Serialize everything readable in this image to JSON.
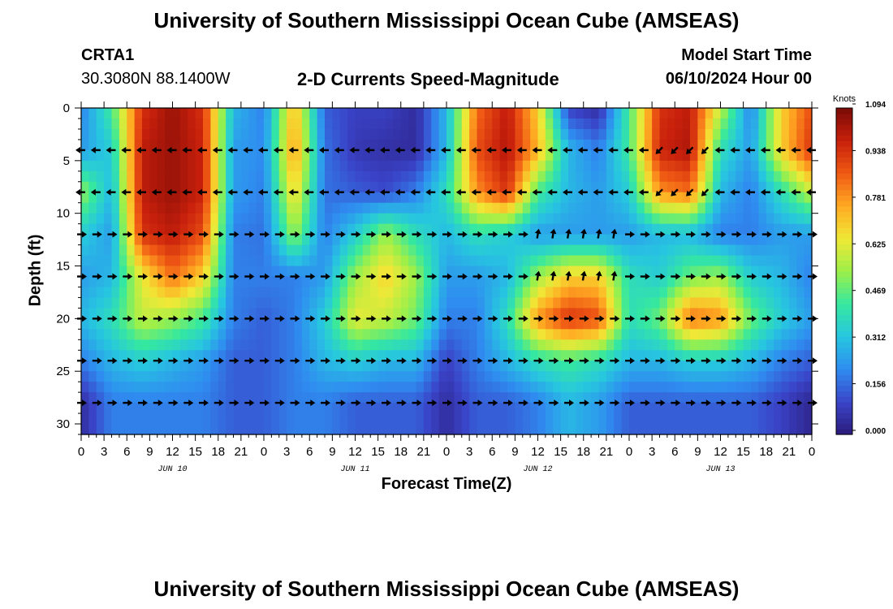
{
  "header": {
    "title_top": "University of Southern Mississippi Ocean Cube (AMSEAS)",
    "station_id": "CRTA1",
    "station_coords": "30.3080N  88.1400W",
    "plot_title": "2-D Currents Speed-Magnitude",
    "model_start_label": "Model Start Time",
    "model_start_value": "06/10/2024 Hour 00",
    "title_bottom": "University of Southern Mississippi Ocean Cube (AMSEAS)"
  },
  "chart_data": {
    "type": "heatmap",
    "title": "2-D Currents Speed-Magnitude",
    "xlabel": "Forecast Time(Z)",
    "ylabel": "Depth (ft)",
    "x_range_hours": [
      0,
      96
    ],
    "y_range_ft": [
      0,
      31
    ],
    "x_tick_labels": [
      "0",
      "3",
      "6",
      "9",
      "12",
      "15",
      "18",
      "21",
      "0",
      "3",
      "6",
      "9",
      "12",
      "15",
      "18",
      "21",
      "0",
      "3",
      "6",
      "9",
      "12",
      "15",
      "18",
      "21",
      "0",
      "3",
      "6",
      "9",
      "12",
      "15",
      "18",
      "21",
      "0"
    ],
    "day_labels": [
      {
        "label": "JUN 10",
        "hour": 12
      },
      {
        "label": "JUN 11",
        "hour": 36
      },
      {
        "label": "JUN 12",
        "hour": 60
      },
      {
        "label": "JUN 13",
        "hour": 84
      }
    ],
    "y_ticks": [
      0,
      5,
      10,
      15,
      20,
      25,
      30
    ],
    "colorbar": {
      "unit": "Knots",
      "ticks": [
        "0.000",
        "0.156",
        "0.312",
        "0.469",
        "0.625",
        "0.781",
        "0.938",
        "1.094"
      ],
      "min": 0.0,
      "max": 1.094,
      "colors": [
        "#2b1a7a",
        "#3a44c8",
        "#2f8cf0",
        "#27c6e0",
        "#35e8a0",
        "#9cf04a",
        "#f0e836",
        "#ffaa22",
        "#f05a14",
        "#c8200c",
        "#7a0a06"
      ]
    },
    "grid_hours": [
      0,
      4,
      8,
      12,
      16,
      20,
      24,
      28,
      32,
      36,
      40,
      44,
      48,
      52,
      56,
      60,
      64,
      68,
      72,
      76,
      80,
      84,
      88,
      92,
      96
    ],
    "grid_depths": [
      0,
      4,
      8,
      12,
      16,
      20,
      24,
      28
    ],
    "speed_knots": [
      [
        0.2,
        0.45,
        0.95,
        1.05,
        0.95,
        0.3,
        0.2,
        0.75,
        0.15,
        0.1,
        0.1,
        0.05,
        0.3,
        0.85,
        1.0,
        0.7,
        0.1,
        0.05,
        0.45,
        0.95,
        1.0,
        0.6,
        0.2,
        0.7,
        0.9
      ],
      [
        0.25,
        0.35,
        1.0,
        1.05,
        0.98,
        0.25,
        0.22,
        0.8,
        0.18,
        0.08,
        0.06,
        0.05,
        0.3,
        0.9,
        1.02,
        0.75,
        0.3,
        0.2,
        0.45,
        0.98,
        1.02,
        0.4,
        0.25,
        0.7,
        0.95
      ],
      [
        0.55,
        0.3,
        1.0,
        1.05,
        0.98,
        0.25,
        0.2,
        0.7,
        0.18,
        0.15,
        0.12,
        0.2,
        0.4,
        0.8,
        0.95,
        0.45,
        0.3,
        0.25,
        0.35,
        0.8,
        0.85,
        0.3,
        0.2,
        0.4,
        0.6
      ],
      [
        0.35,
        0.25,
        0.95,
        1.0,
        0.9,
        0.2,
        0.18,
        0.55,
        0.2,
        0.35,
        0.55,
        0.4,
        0.3,
        0.4,
        0.35,
        0.25,
        0.25,
        0.25,
        0.25,
        0.3,
        0.3,
        0.2,
        0.2,
        0.25,
        0.25
      ],
      [
        0.25,
        0.3,
        0.65,
        0.85,
        0.7,
        0.2,
        0.2,
        0.2,
        0.25,
        0.55,
        0.7,
        0.55,
        0.25,
        0.25,
        0.3,
        0.55,
        0.7,
        0.7,
        0.4,
        0.35,
        0.5,
        0.55,
        0.35,
        0.3,
        0.2
      ],
      [
        0.3,
        0.4,
        0.6,
        0.55,
        0.45,
        0.2,
        0.15,
        0.2,
        0.35,
        0.65,
        0.6,
        0.5,
        0.2,
        0.2,
        0.4,
        0.8,
        0.95,
        0.9,
        0.4,
        0.5,
        0.85,
        0.8,
        0.5,
        0.35,
        0.25
      ],
      [
        0.2,
        0.3,
        0.35,
        0.3,
        0.25,
        0.15,
        0.15,
        0.2,
        0.3,
        0.35,
        0.3,
        0.3,
        0.1,
        0.2,
        0.3,
        0.4,
        0.45,
        0.4,
        0.3,
        0.3,
        0.35,
        0.35,
        0.3,
        0.2,
        0.15
      ],
      [
        0.05,
        0.2,
        0.2,
        0.2,
        0.2,
        0.15,
        0.15,
        0.2,
        0.2,
        0.15,
        0.15,
        0.15,
        0.05,
        0.15,
        0.15,
        0.2,
        0.3,
        0.25,
        0.15,
        0.15,
        0.15,
        0.15,
        0.15,
        0.1,
        0.03
      ]
    ],
    "direction_note": "Arrows mostly point east at deeper levels and west at 4-8 ft; scattered north-east arrows near hour 60-68."
  }
}
